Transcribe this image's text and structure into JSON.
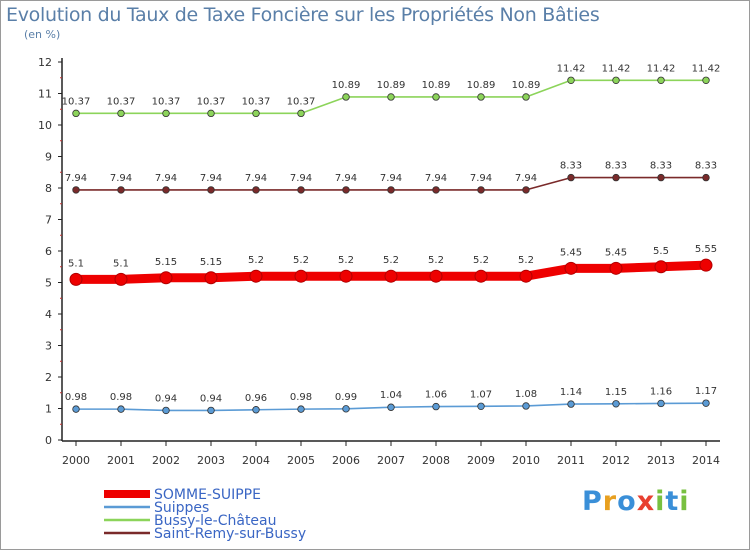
{
  "chart_data": {
    "type": "line",
    "title": "Evolution du Taux de Taxe Foncière sur les Propriétés Non Bâties",
    "ylabel": "(en %)",
    "xlabel": "",
    "ylim": [
      0,
      12
    ],
    "yticks": [
      "0",
      "1",
      "2",
      "3",
      "4",
      "5",
      "6",
      "7",
      "8",
      "9",
      "10",
      "11",
      "12"
    ],
    "categories": [
      "2000",
      "2001",
      "2002",
      "2003",
      "2004",
      "2005",
      "2006",
      "2007",
      "2008",
      "2009",
      "2010",
      "2011",
      "2012",
      "2013",
      "2014"
    ],
    "series": [
      {
        "name": "SOMME-SUIPPE",
        "color": "#ee0000",
        "values": [
          5.1,
          5.1,
          5.15,
          5.15,
          5.2,
          5.2,
          5.2,
          5.2,
          5.2,
          5.2,
          5.2,
          5.45,
          5.45,
          5.5,
          5.55
        ],
        "labels": [
          "5.1",
          "5.1",
          "5.15",
          "5.15",
          "5.2",
          "5.2",
          "5.2",
          "5.2",
          "5.2",
          "5.2",
          "5.2",
          "5.45",
          "5.45",
          "5.5",
          "5.55"
        ]
      },
      {
        "name": "Suippes",
        "color": "#5b9bd5",
        "values": [
          0.98,
          0.98,
          0.94,
          0.94,
          0.96,
          0.98,
          0.99,
          1.04,
          1.06,
          1.07,
          1.08,
          1.14,
          1.15,
          1.16,
          1.17
        ],
        "labels": [
          "0.98",
          "0.98",
          "0.94",
          "0.94",
          "0.96",
          "0.98",
          "0.99",
          "1.04",
          "1.06",
          "1.07",
          "1.08",
          "1.14",
          "1.15",
          "1.16",
          "1.17"
        ]
      },
      {
        "name": "Bussy-le-Château",
        "color": "#8cd45a",
        "values": [
          10.37,
          10.37,
          10.37,
          10.37,
          10.37,
          10.37,
          10.89,
          10.89,
          10.89,
          10.89,
          10.89,
          11.42,
          11.42,
          11.42,
          11.42
        ],
        "labels": [
          "10.37",
          "10.37",
          "10.37",
          "10.37",
          "10.37",
          "10.37",
          "10.89",
          "10.89",
          "10.89",
          "10.89",
          "10.89",
          "11.42",
          "11.42",
          "11.42",
          "11.42"
        ]
      },
      {
        "name": "Saint-Remy-sur-Bussy",
        "color": "#7a2a2a",
        "values": [
          7.94,
          7.94,
          7.94,
          7.94,
          7.94,
          7.94,
          7.94,
          7.94,
          7.94,
          7.94,
          7.94,
          8.33,
          8.33,
          8.33,
          8.33
        ],
        "labels": [
          "7.94",
          "7.94",
          "7.94",
          "7.94",
          "7.94",
          "7.94",
          "7.94",
          "7.94",
          "7.94",
          "7.94",
          "7.94",
          "8.33",
          "8.33",
          "8.33",
          "8.33"
        ]
      }
    ],
    "legend_position": "bottom-left",
    "grid": false
  },
  "branding": {
    "logo_letters": [
      "P",
      "r",
      "o",
      "x",
      "i",
      "t",
      "i"
    ],
    "logo_colors": [
      "#3a8fd8",
      "#e8a020",
      "#3a8fd8",
      "#e84030",
      "#78c040",
      "#3a8fd8",
      "#78c040"
    ]
  }
}
